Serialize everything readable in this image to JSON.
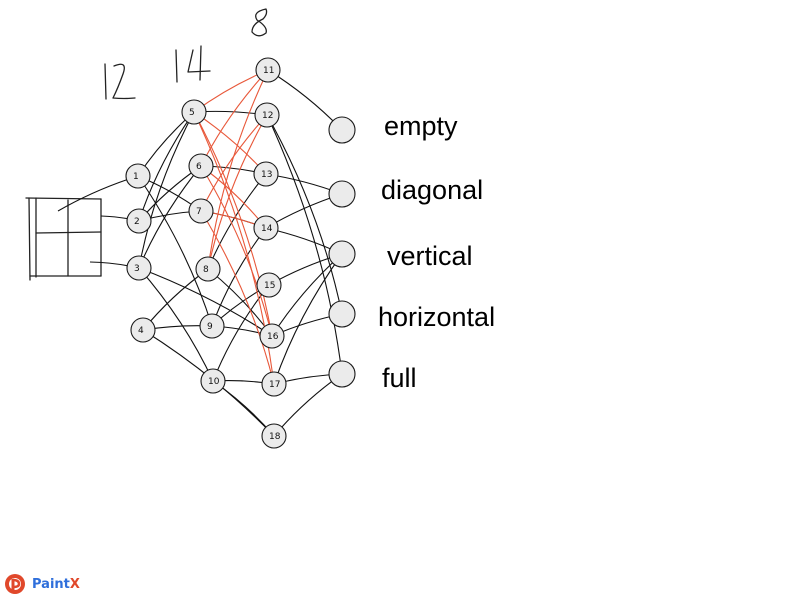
{
  "diagram": {
    "layer_counts": [
      "12",
      "14",
      "8"
    ],
    "nodes": [
      "1",
      "2",
      "3",
      "4",
      "5",
      "6",
      "7",
      "8",
      "9",
      "10",
      "11",
      "12",
      "13",
      "14",
      "15",
      "16",
      "17",
      "18"
    ],
    "outputs": [
      "empty",
      "diagonal",
      "vertical",
      "horizontal",
      "full"
    ],
    "edge_colors": {
      "default": "#111111",
      "highlighted": "#e8583a"
    },
    "node_fill": "#ebebeb"
  },
  "brand": {
    "name": "Paint",
    "suffix": "X",
    "logo_colors": [
      "#e0482b",
      "#2f6fdb"
    ]
  }
}
